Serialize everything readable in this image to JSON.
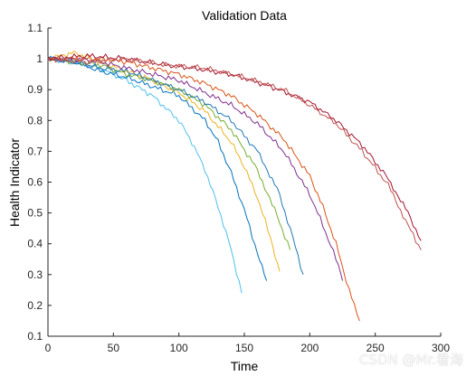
{
  "chart_data": {
    "type": "line",
    "title": "Validation Data",
    "xlabel": "Time",
    "ylabel": "Health Indicator",
    "xlim": [
      0,
      300
    ],
    "ylim": [
      0.1,
      1.1
    ],
    "xticks": [
      "0",
      "50",
      "100",
      "150",
      "200",
      "250",
      "300"
    ],
    "yticks": [
      "0.1",
      "0.2",
      "0.3",
      "0.4",
      "0.5",
      "0.6",
      "0.7",
      "0.8",
      "0.9",
      "1",
      "1.1"
    ],
    "grid": false,
    "series": [
      {
        "color": "#4DBEEE",
        "x": [
          0,
          20,
          40,
          60,
          80,
          100,
          110,
          120,
          130,
          140,
          148
        ],
        "y": [
          1.0,
          0.99,
          0.97,
          0.93,
          0.88,
          0.8,
          0.73,
          0.64,
          0.52,
          0.38,
          0.24
        ]
      },
      {
        "color": "#0072BD",
        "x": [
          0,
          20,
          40,
          60,
          80,
          100,
          120,
          130,
          140,
          150,
          160,
          167
        ],
        "y": [
          1.0,
          0.99,
          0.96,
          0.94,
          0.91,
          0.88,
          0.8,
          0.73,
          0.63,
          0.51,
          0.37,
          0.28
        ]
      },
      {
        "color": "#EDB120",
        "x": [
          0,
          20,
          40,
          60,
          80,
          100,
          120,
          140,
          150,
          160,
          170,
          177
        ],
        "y": [
          1.0,
          1.02,
          0.99,
          0.96,
          0.93,
          0.89,
          0.83,
          0.73,
          0.65,
          0.55,
          0.42,
          0.31
        ]
      },
      {
        "color": "#77AC30",
        "x": [
          0,
          20,
          40,
          60,
          80,
          100,
          120,
          140,
          160,
          175,
          185
        ],
        "y": [
          1.0,
          0.99,
          0.98,
          0.95,
          0.93,
          0.9,
          0.85,
          0.77,
          0.64,
          0.49,
          0.38
        ]
      },
      {
        "color": "#1F77B4",
        "x": [
          0,
          20,
          40,
          60,
          80,
          100,
          120,
          140,
          160,
          175,
          185,
          195
        ],
        "y": [
          1.0,
          0.99,
          0.97,
          0.96,
          0.93,
          0.9,
          0.86,
          0.8,
          0.7,
          0.58,
          0.45,
          0.3
        ]
      },
      {
        "color": "#7E2F8E",
        "x": [
          0,
          20,
          40,
          60,
          80,
          100,
          120,
          140,
          160,
          180,
          200,
          210,
          220,
          225
        ],
        "y": [
          1.0,
          1.0,
          0.99,
          0.97,
          0.95,
          0.93,
          0.89,
          0.85,
          0.79,
          0.7,
          0.56,
          0.46,
          0.35,
          0.28
        ]
      },
      {
        "color": "#D95319",
        "x": [
          0,
          20,
          40,
          60,
          80,
          100,
          120,
          140,
          160,
          180,
          200,
          210,
          220,
          230,
          238
        ],
        "y": [
          1.0,
          1.0,
          1.0,
          0.99,
          0.97,
          0.95,
          0.92,
          0.88,
          0.82,
          0.74,
          0.62,
          0.52,
          0.4,
          0.25,
          0.15
        ]
      },
      {
        "color": "#A2142F",
        "x": [
          0,
          30,
          60,
          90,
          110,
          140,
          170,
          200,
          220,
          240,
          260,
          275,
          285
        ],
        "y": [
          1.0,
          1.01,
          1.0,
          0.98,
          0.97,
          0.95,
          0.91,
          0.86,
          0.8,
          0.72,
          0.61,
          0.5,
          0.41
        ]
      },
      {
        "color": "#C0504D",
        "x": [
          0,
          30,
          60,
          90,
          120,
          150,
          180,
          200,
          220,
          240,
          260,
          275,
          285
        ],
        "y": [
          1.0,
          0.99,
          1.0,
          0.98,
          0.97,
          0.94,
          0.9,
          0.85,
          0.79,
          0.7,
          0.59,
          0.46,
          0.38
        ]
      }
    ]
  },
  "watermark": "CSDN @Mr.看海"
}
